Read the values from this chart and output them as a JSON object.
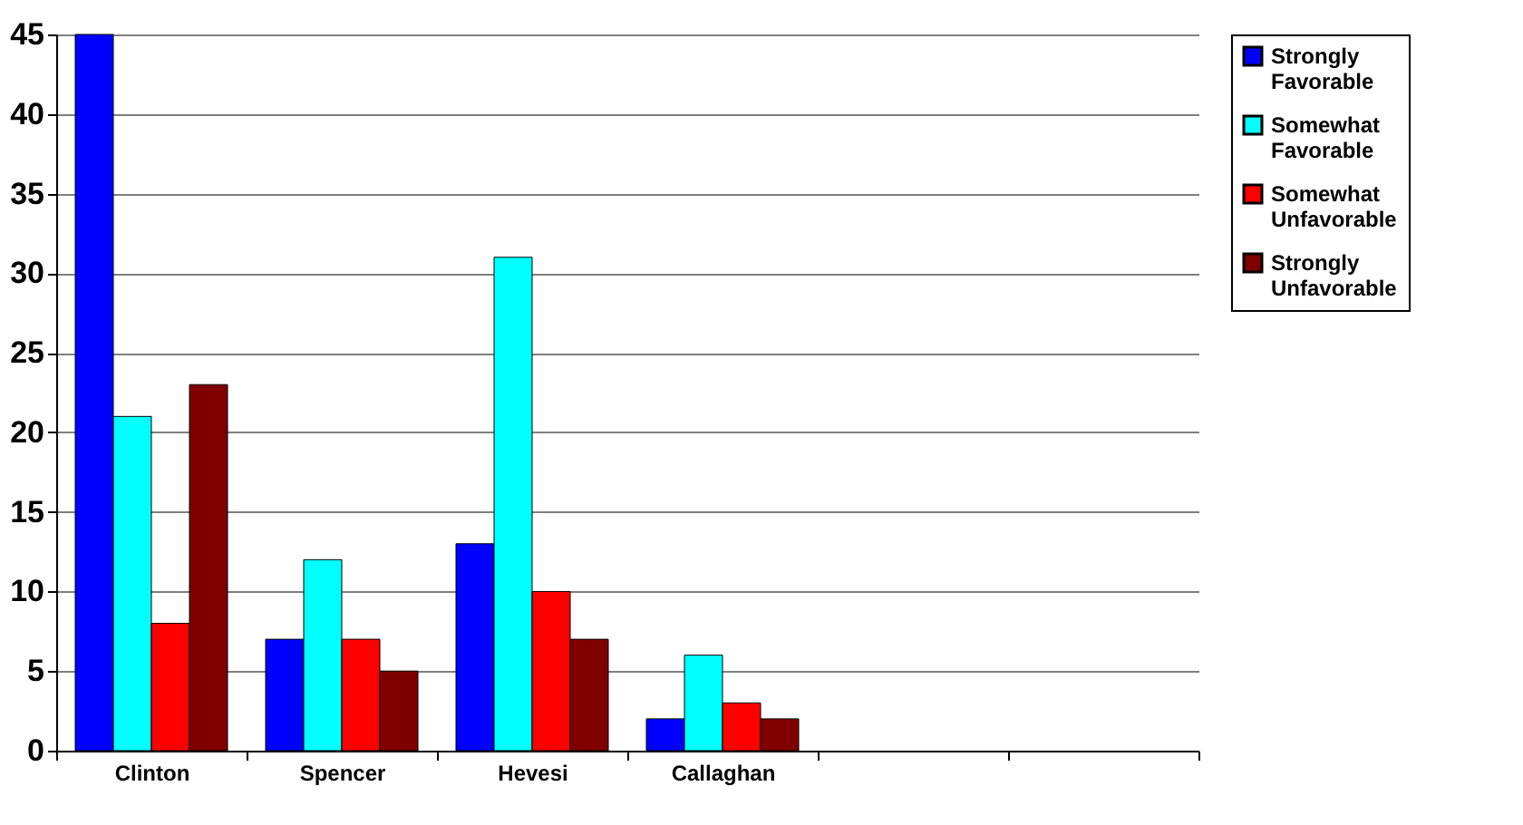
{
  "chart_data": {
    "type": "bar",
    "categories": [
      "Clinton",
      "Spencer",
      "Hevesi",
      "Callaghan",
      null,
      null
    ],
    "series": [
      {
        "name": "Strongly Favorable",
        "color": "#0000ff",
        "values": [
          45,
          7,
          13,
          2,
          null,
          null
        ]
      },
      {
        "name": "Somewhat Favorable",
        "color": "#00ffff",
        "values": [
          21,
          12,
          31,
          6,
          null,
          null
        ]
      },
      {
        "name": "Somewhat Unfavorable",
        "color": "#ff0000",
        "values": [
          8,
          7,
          10,
          3,
          null,
          null
        ]
      },
      {
        "name": "Strongly Unfavorable",
        "color": "#800000",
        "values": [
          23,
          5,
          7,
          2,
          null,
          null
        ]
      }
    ],
    "ylim": [
      0,
      45
    ],
    "yticks": [
      0,
      5,
      10,
      15,
      20,
      25,
      30,
      35,
      40,
      45
    ],
    "grid": "y",
    "legend": "right"
  }
}
